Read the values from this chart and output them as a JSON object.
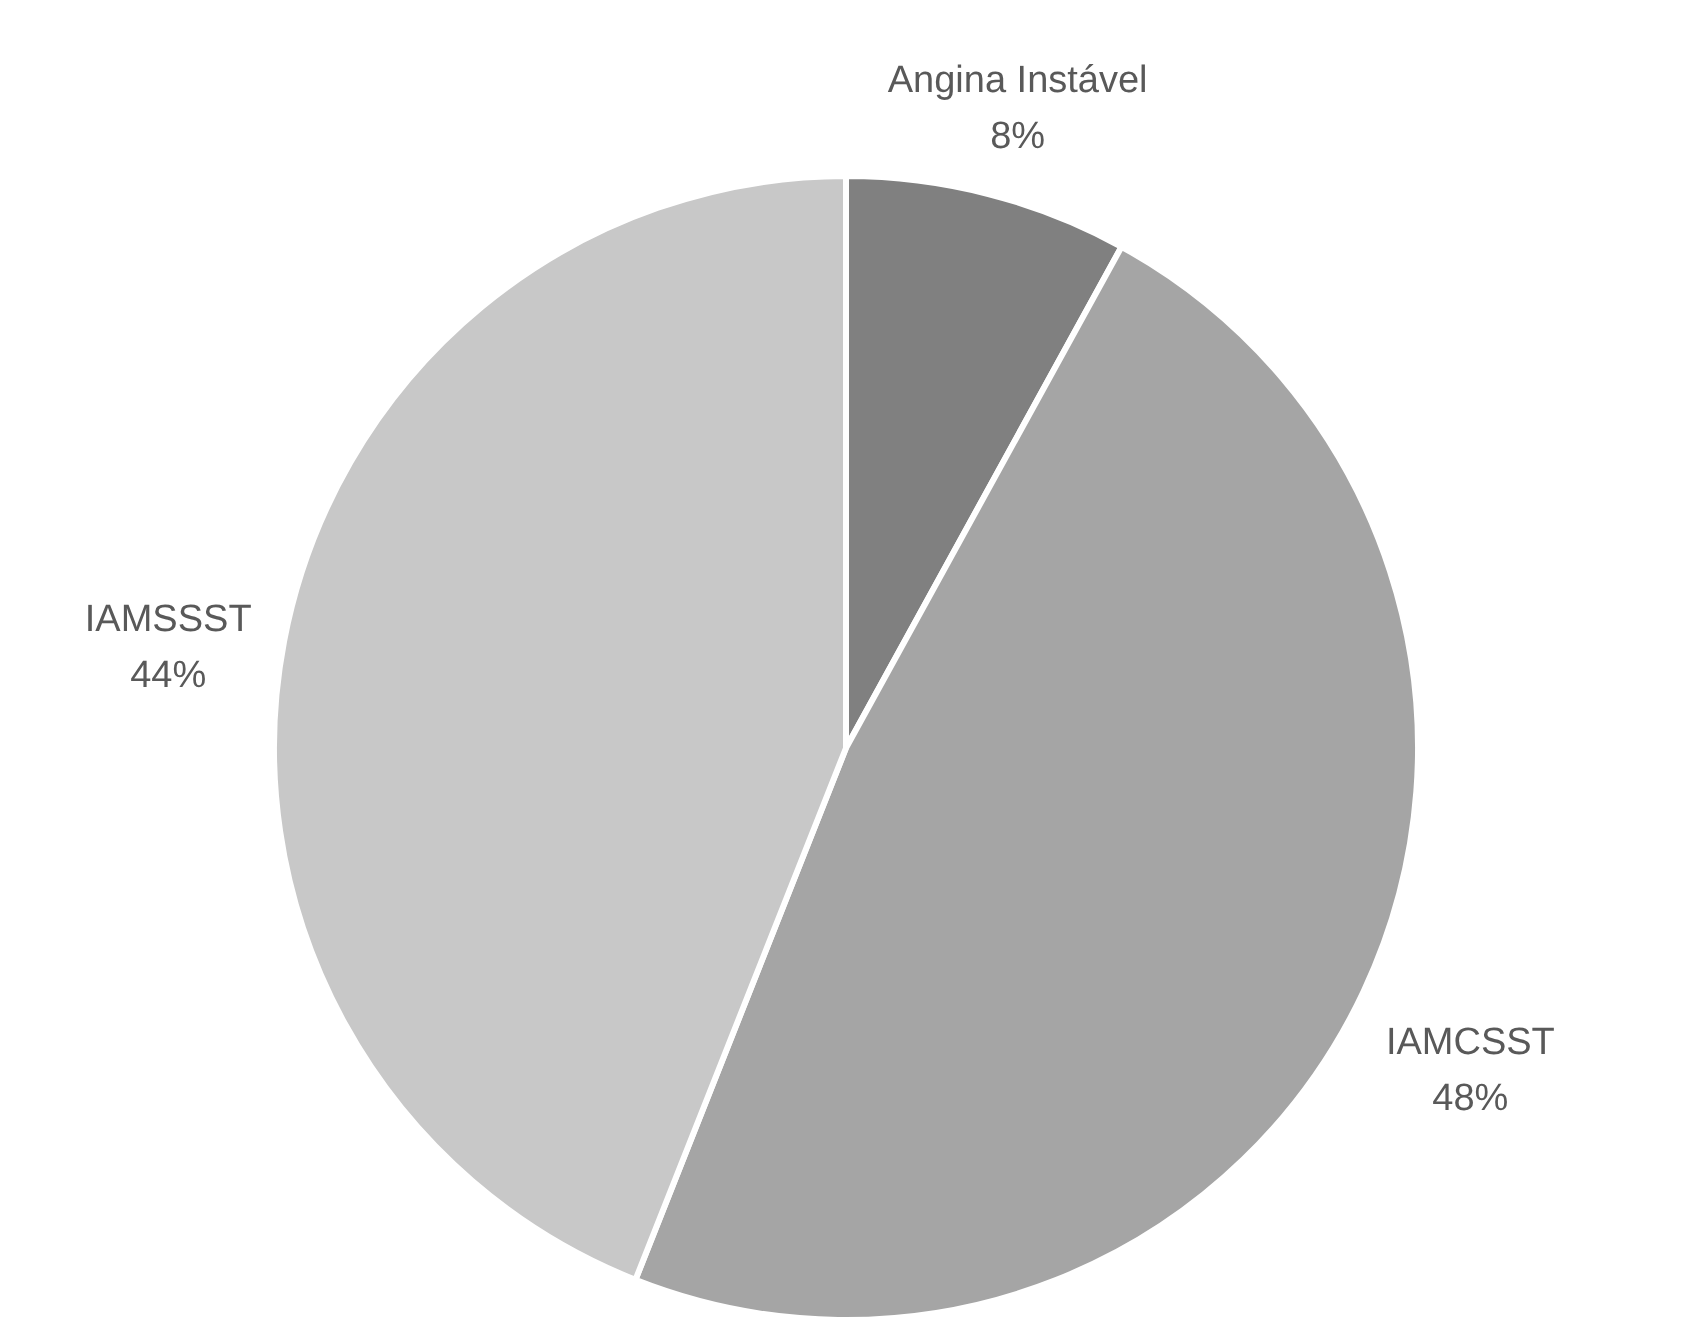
{
  "chart_data": {
    "type": "pie",
    "categories": [
      "Angina Instável",
      "IAMCSST",
      "IAMSSST"
    ],
    "values": [
      8,
      48,
      44
    ],
    "colors": [
      "#808080",
      "#a5a5a5",
      "#c8c8c8"
    ],
    "value_labels": [
      "8%",
      "48%",
      "44%"
    ]
  }
}
